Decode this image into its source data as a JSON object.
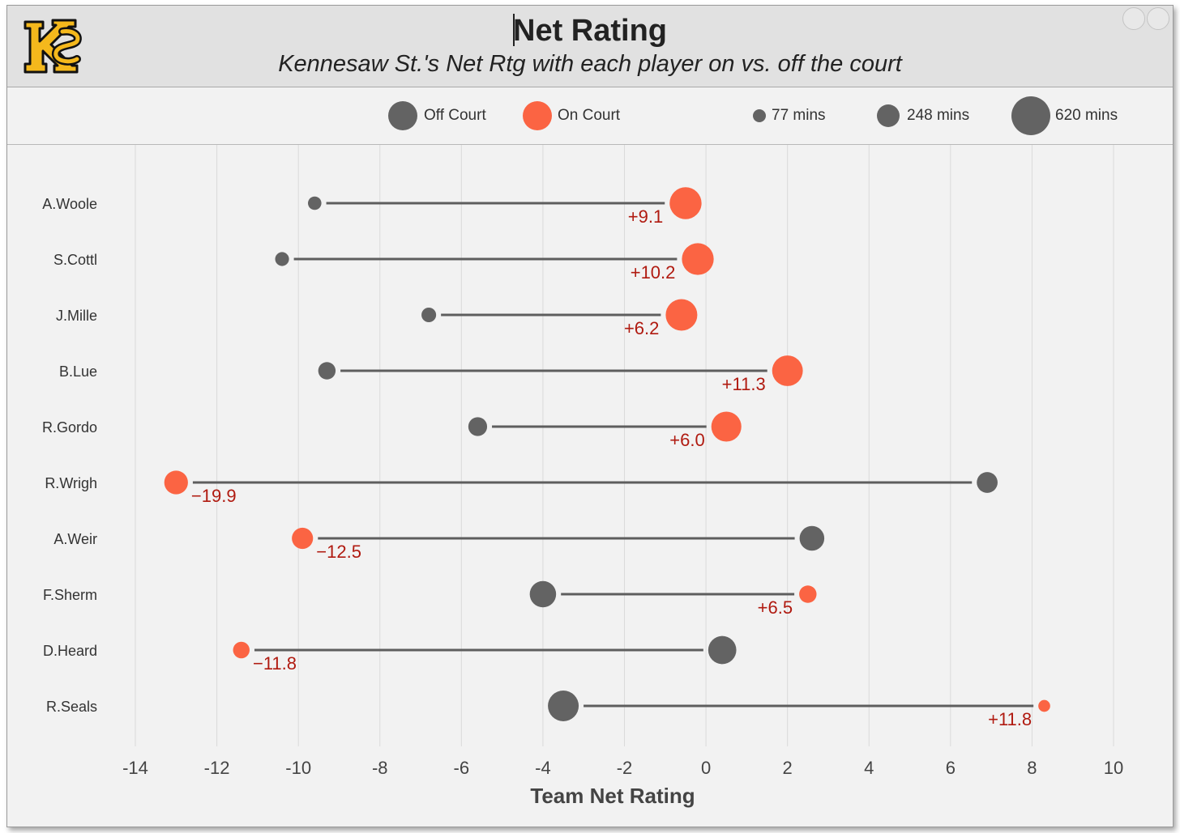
{
  "header": {
    "title": "Net Rating",
    "subtitle": "Kennesaw St.'s Net Rtg with each player on vs. off the court"
  },
  "legend": {
    "off_label": "Off Court",
    "on_label": "On Court",
    "size_labels": [
      "77 mins",
      "248 mins",
      "620 mins"
    ]
  },
  "colors": {
    "off": "#636363",
    "on": "#fb6443",
    "delta_text": "#b01a10",
    "grid": "#dadada",
    "connector": "#5e5e5e",
    "logo_gold": "#f4b81c"
  },
  "chart_data": {
    "type": "dumbbell",
    "title": "Net Rating",
    "subtitle": "Kennesaw St.'s Net Rtg with each player on vs. off the court",
    "xlabel": "Team Net Rating",
    "ylabel": "",
    "xlim": [
      -15,
      10.5
    ],
    "xticks": [
      -14,
      -12,
      -10,
      -8,
      -6,
      -4,
      -2,
      0,
      2,
      4,
      6,
      8,
      10
    ],
    "grid": true,
    "series_names": [
      "Off Court",
      "On Court"
    ],
    "players": [
      {
        "name": "A.Woole",
        "off": -9.6,
        "on": -0.5,
        "delta": "+9.1",
        "off_mins": 30,
        "on_mins": 595
      },
      {
        "name": "S.Cottl",
        "off": -10.4,
        "on": -0.2,
        "delta": "+10.2",
        "off_mins": 35,
        "on_mins": 590
      },
      {
        "name": "J.Mille",
        "off": -6.8,
        "on": -0.6,
        "delta": "+6.2",
        "off_mins": 45,
        "on_mins": 580
      },
      {
        "name": "B.Lue",
        "off": -9.3,
        "on": 2.0,
        "delta": "+11.3",
        "off_mins": 90,
        "on_mins": 535
      },
      {
        "name": "R.Gordo",
        "off": -5.6,
        "on": 0.5,
        "delta": "+6.0",
        "off_mins": 120,
        "on_mins": 505
      },
      {
        "name": "R.Wrigh",
        "off": 6.9,
        "on": -13.0,
        "delta": "−19.9",
        "off_mins": 170,
        "on_mins": 255
      },
      {
        "name": "A.Weir",
        "off": 2.6,
        "on": -9.9,
        "delta": "−12.5",
        "off_mins": 290,
        "on_mins": 180
      },
      {
        "name": "F.Sherm",
        "off": -4.0,
        "on": 2.5,
        "delta": "+6.5",
        "off_mins": 350,
        "on_mins": 90
      },
      {
        "name": "D.Heard",
        "off": 0.4,
        "on": -11.4,
        "delta": "−11.8",
        "off_mins": 420,
        "on_mins": 75
      },
      {
        "name": "R.Seals",
        "off": -3.5,
        "on": 8.3,
        "delta": "+11.8",
        "off_mins": 540,
        "on_mins": 15
      }
    ]
  }
}
